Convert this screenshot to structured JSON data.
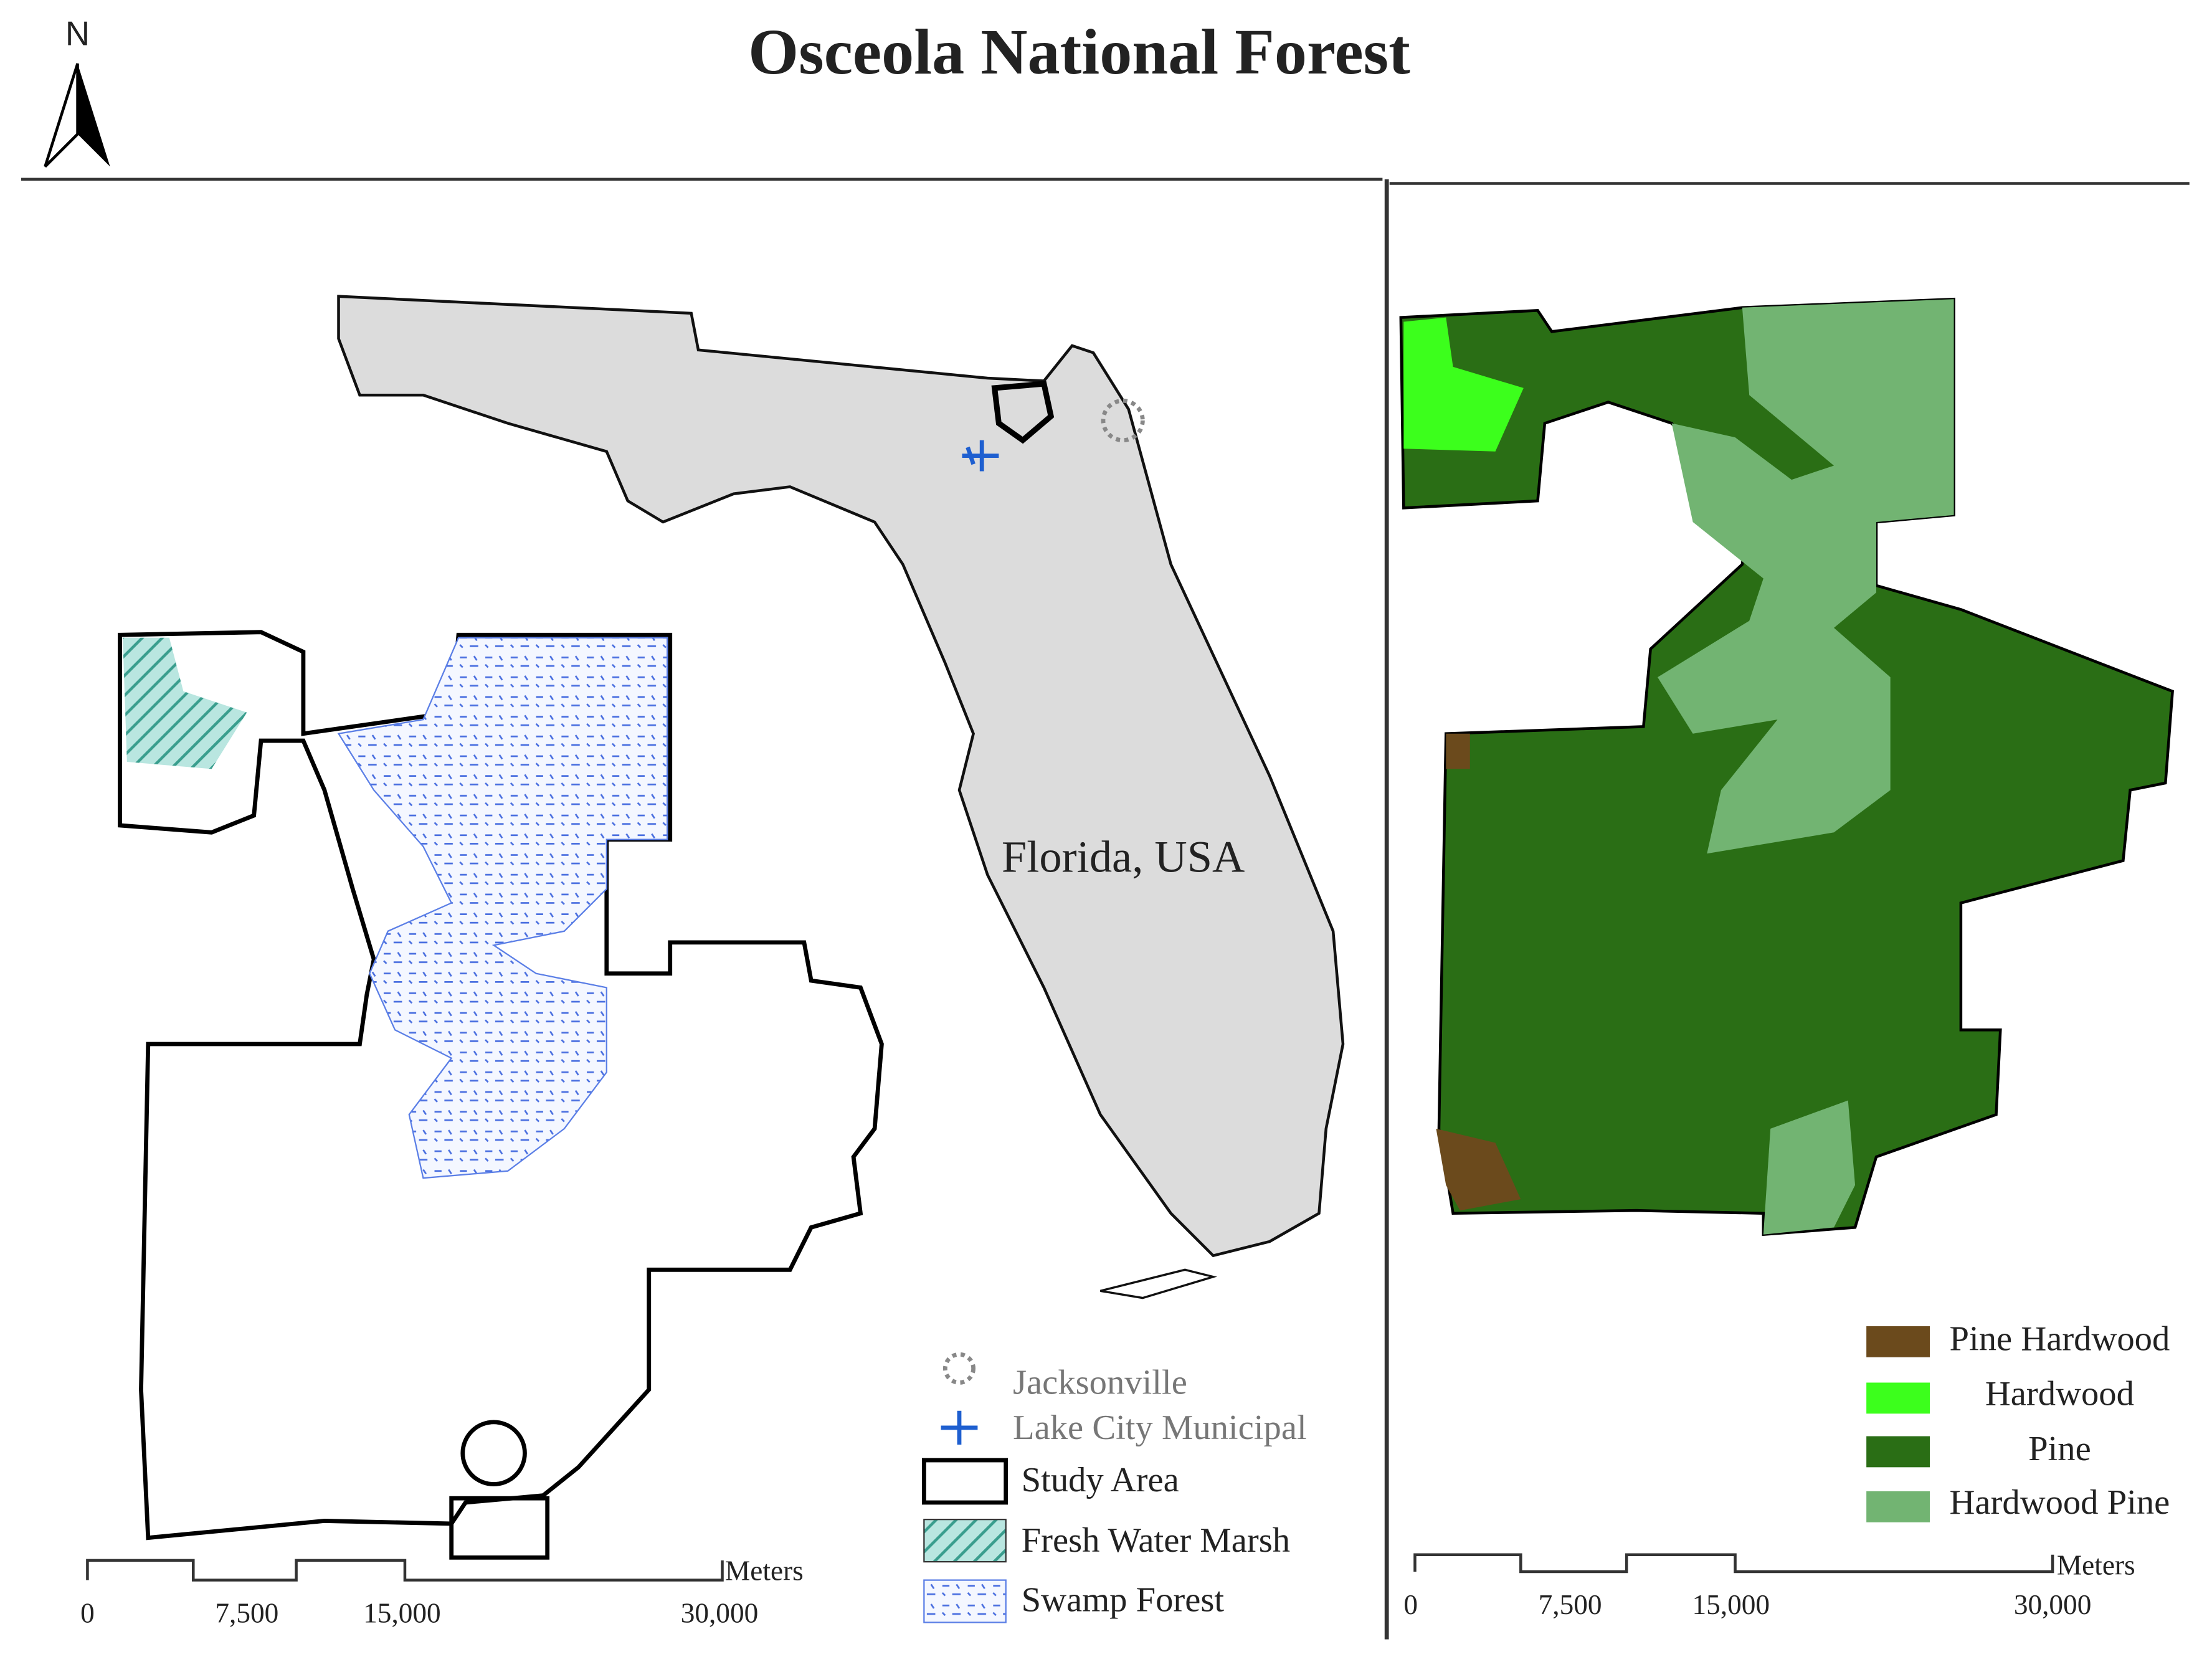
{
  "title": "Osceola National Forest",
  "north": "N",
  "locator_label": "Florida, USA",
  "left_legend": [
    "Jacksonville",
    "Lake City Municipal",
    "Study Area",
    "Fresh Water Marsh",
    "Swamp Forest"
  ],
  "right_legend": [
    "Pine Hardwood",
    "Hardwood",
    "Pine",
    "Hardwood Pine"
  ],
  "left_scale": {
    "labels": [
      "0",
      "7,500",
      "15,000",
      "30,000"
    ],
    "unit": "Meters"
  },
  "right_scale": {
    "labels": [
      "0",
      "7,500",
      "15,000",
      "30,000"
    ],
    "unit": "Meters"
  }
}
